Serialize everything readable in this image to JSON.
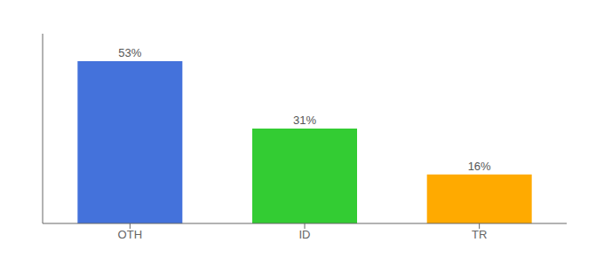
{
  "chart_data": {
    "type": "bar",
    "categories": [
      "OTH",
      "ID",
      "TR"
    ],
    "values": [
      53,
      31,
      16
    ],
    "value_labels": [
      "53%",
      "31%",
      "16%"
    ],
    "colors": [
      "#4472db",
      "#33cc33",
      "#ffaa00"
    ],
    "ylim": [
      0,
      62
    ],
    "data_labels": true,
    "tick_labels": "x"
  }
}
